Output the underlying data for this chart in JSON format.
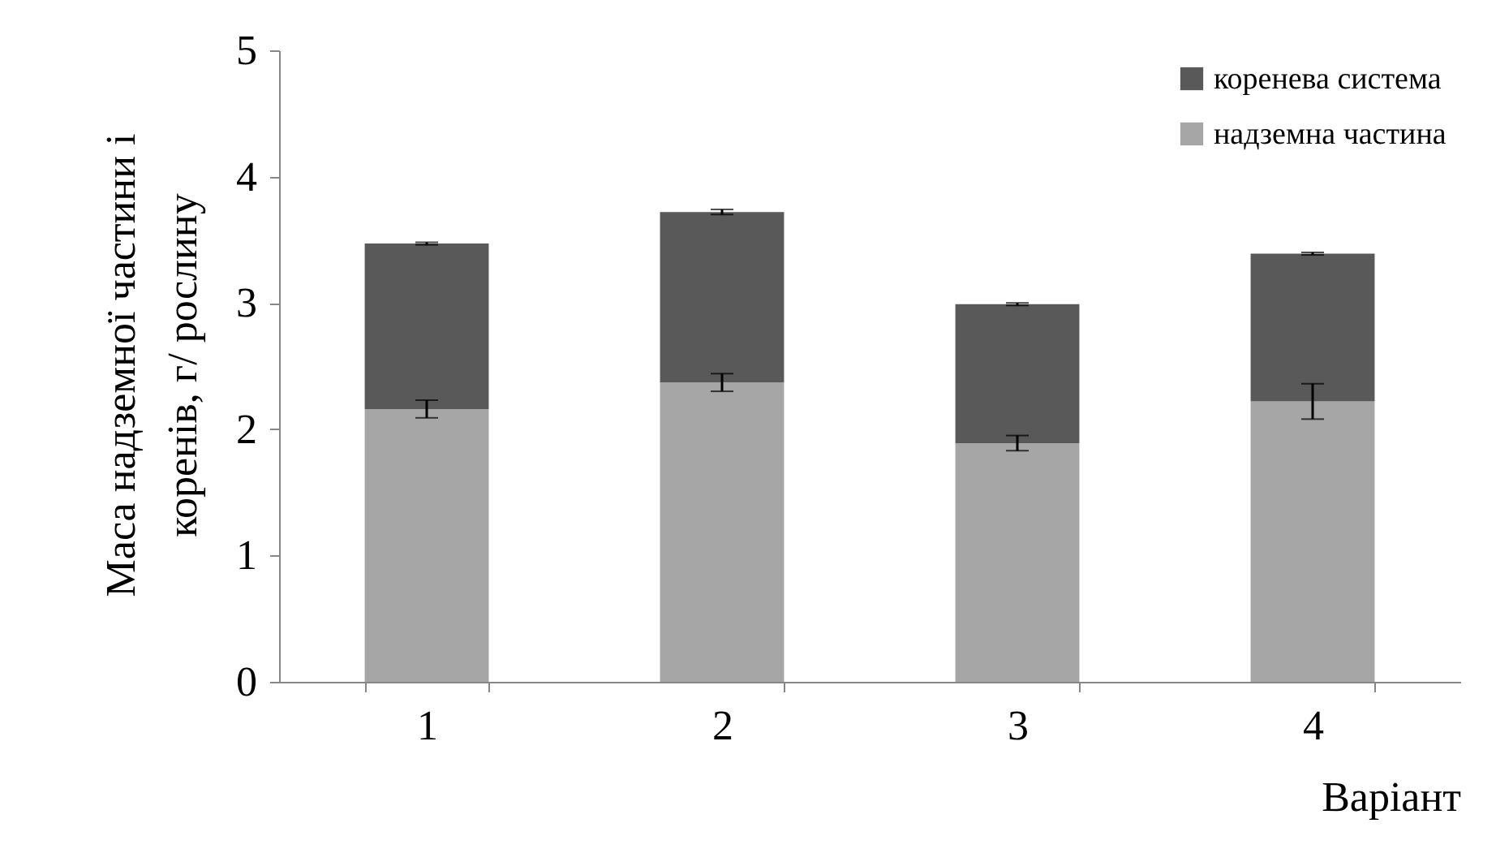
{
  "chart_data": {
    "type": "bar",
    "stacked": true,
    "categories": [
      "1",
      "2",
      "3",
      "4"
    ],
    "xlabel": "Варіант",
    "ylabel": "Маса надземної частини і\nкоренів, г/ рослину",
    "ylim": [
      0,
      5
    ],
    "yticks": [
      0,
      1,
      2,
      3,
      4,
      5
    ],
    "legend": "top right",
    "series": [
      {
        "name": "надземна частина",
        "color": "#a6a6a6",
        "values": [
          2.16,
          2.37,
          1.89,
          2.22
        ],
        "errors": [
          0.07,
          0.07,
          0.06,
          0.14
        ]
      },
      {
        "name": "коренева система",
        "color": "#595959",
        "values": [
          1.31,
          1.35,
          1.1,
          1.17
        ],
        "errors": [
          0.01,
          0.02,
          0.01,
          0.01
        ]
      }
    ]
  }
}
